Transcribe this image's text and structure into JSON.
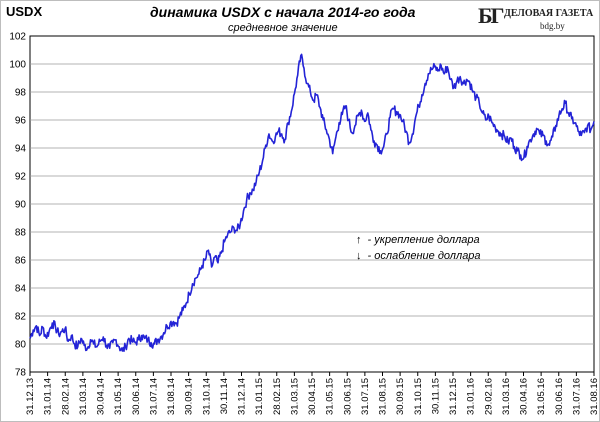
{
  "header": {
    "symbol": "USDX",
    "title": "динамика  USDX с начала 2014-го года",
    "subtitle": "средневное значение"
  },
  "logo": {
    "mark": "БГ",
    "name": "ДЕЛОВАЯ ГАЗЕТА",
    "site": "bdg.by"
  },
  "legend": {
    "up_arrow": "↑",
    "up_text": " - укрепление доллара",
    "down_arrow": "↓",
    "down_text": " - ослабление доллара"
  },
  "colors": {
    "line": "#2323d6",
    "grid": "#9a9a9a",
    "axis": "#000000"
  },
  "chart_data": {
    "type": "line",
    "title": "динамика  USDX с начала 2014-го года",
    "subtitle": "средневное значение",
    "ylim": [
      78,
      102
    ],
    "yticks": [
      78,
      80,
      82,
      84,
      86,
      88,
      90,
      92,
      94,
      96,
      98,
      100,
      102
    ],
    "grid": true,
    "x_tick_labels": [
      "31.12.13",
      "31.01.14",
      "28.02.14",
      "31.03.14",
      "30.04.14",
      "31.05.14",
      "30.06.14",
      "31.07.14",
      "31.08.14",
      "30.09.14",
      "31.10.14",
      "30.11.14",
      "31.12.14",
      "31.01.15",
      "28.02.15",
      "31.03.15",
      "30.04.15",
      "31.05.15",
      "30.06.15",
      "31.07.15",
      "31.08.15",
      "30.09.15",
      "31.10.15",
      "30.11.15",
      "31.12.15",
      "31.01.16",
      "29.02.16",
      "31.03.16",
      "30.04.16",
      "31.05.16",
      "30.06.16",
      "31.07.16",
      "31.08.16"
    ],
    "series": [
      {
        "values": [
          80.4,
          81.0,
          81.3,
          80.6,
          81.2,
          80.5,
          80.9,
          81.5,
          81.2,
          80.7,
          80.9,
          81.1,
          80.2,
          80.6,
          80.0,
          79.8,
          80.4,
          79.9,
          79.7,
          80.3,
          80.0,
          79.8,
          80.2,
          80.5,
          79.9,
          79.7,
          80.1,
          80.3,
          79.8,
          79.5,
          79.8,
          80.4,
          80.2,
          80.1,
          80.3,
          80.6,
          80.4,
          80.3,
          80.1,
          80.0,
          80.3,
          80.5,
          80.8,
          81.3,
          81.5,
          81.6,
          81.5,
          82.0,
          82.4,
          82.9,
          83.6,
          84.3,
          84.7,
          85.0,
          85.6,
          86.0,
          86.7,
          85.5,
          86.2,
          85.8,
          86.5,
          87.3,
          87.8,
          88.0,
          88.3,
          88.1,
          88.6,
          89.5,
          90.3,
          90.8,
          91.0,
          91.6,
          92.3,
          93.1,
          94.2,
          95.0,
          94.5,
          94.8,
          95.2,
          95.0,
          94.6,
          95.8,
          96.6,
          97.9,
          99.2,
          100.6,
          99.7,
          98.6,
          98.0,
          97.4,
          97.8,
          96.9,
          96.0,
          95.3,
          94.6,
          93.6,
          94.8,
          95.8,
          96.4,
          97.0,
          96.0,
          95.1,
          95.6,
          96.3,
          96.7,
          95.9,
          96.5,
          95.3,
          94.5,
          94.2,
          93.8,
          94.1,
          95.0,
          96.2,
          96.8,
          96.6,
          96.4,
          95.9,
          95.2,
          94.4,
          95.0,
          96.2,
          97.0,
          97.8,
          98.6,
          99.3,
          99.6,
          99.8,
          99.5,
          99.9,
          99.3,
          99.8,
          98.9,
          98.3,
          98.8,
          99.1,
          98.6,
          98.9,
          98.7,
          98.0,
          97.6,
          97.2,
          96.5,
          96.0,
          96.3,
          95.8,
          95.5,
          95.2,
          95.0,
          94.8,
          94.4,
          94.7,
          94.1,
          93.8,
          93.5,
          93.3,
          94.1,
          94.6,
          95.0,
          95.4,
          95.0,
          94.9,
          94.5,
          94.2,
          94.8,
          95.6,
          96.3,
          96.8,
          97.2,
          96.5,
          96.1,
          95.8,
          95.2,
          94.9,
          95.1,
          95.6,
          95.3,
          95.9
        ]
      }
    ]
  }
}
